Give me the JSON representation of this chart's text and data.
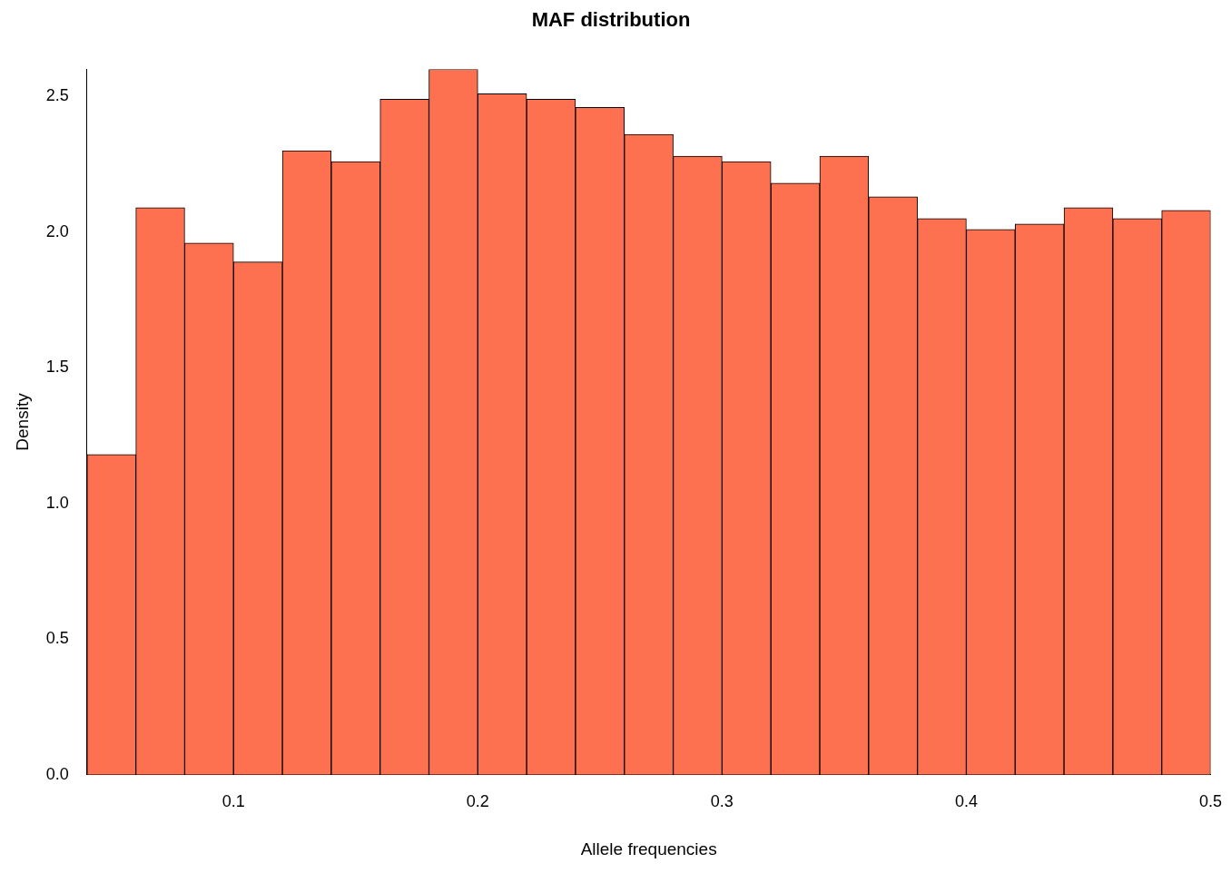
{
  "chart_data": {
    "type": "histogram",
    "title": "MAF distribution",
    "xlabel": "Allele frequencies",
    "ylabel": "Density",
    "bins": [
      0.04,
      0.06,
      0.08,
      0.1,
      0.12,
      0.14,
      0.16,
      0.18,
      0.2,
      0.22,
      0.24,
      0.26,
      0.28,
      0.3,
      0.32,
      0.34,
      0.36,
      0.38,
      0.4,
      0.42,
      0.44,
      0.46,
      0.48,
      0.5
    ],
    "values": [
      1.18,
      2.09,
      1.96,
      1.89,
      2.3,
      2.26,
      2.49,
      2.6,
      2.51,
      2.49,
      2.46,
      2.36,
      2.28,
      2.26,
      2.18,
      2.28,
      2.13,
      2.05,
      2.01,
      2.03,
      2.09,
      2.05,
      2.08
    ],
    "color": "#fd7150",
    "xlim": [
      0.04,
      0.5
    ],
    "xticks": [
      0.1,
      0.2,
      0.3,
      0.4,
      0.5
    ],
    "ylim": [
      0,
      2.6
    ],
    "yticks": [
      {
        "value": 0,
        "label": "0.0"
      },
      0.5,
      {
        "value": 1,
        "label": "1.0"
      },
      1.5,
      {
        "value": 2,
        "label": "2.0"
      },
      2.5
    ],
    "grid": false,
    "legend": false
  }
}
